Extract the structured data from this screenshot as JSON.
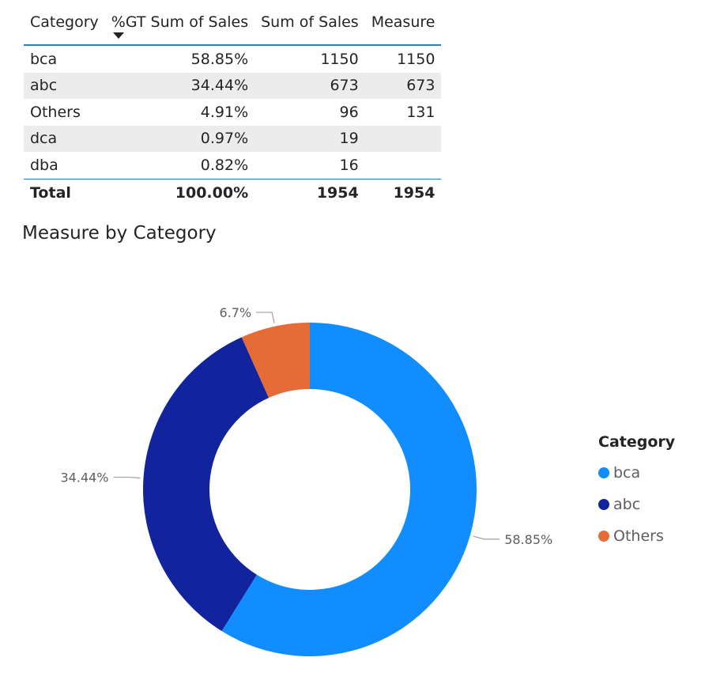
{
  "table": {
    "headers": [
      "Category",
      "%GT Sum of Sales",
      "Sum of Sales",
      "Measure"
    ],
    "sort_column": 1,
    "rows": [
      {
        "category": "bca",
        "pct": "58.85%",
        "sales": "1150",
        "measure": "1150"
      },
      {
        "category": "abc",
        "pct": "34.44%",
        "sales": "673",
        "measure": "673"
      },
      {
        "category": "Others",
        "pct": "4.91%",
        "sales": "96",
        "measure": "131"
      },
      {
        "category": "dca",
        "pct": "0.97%",
        "sales": "19",
        "measure": ""
      },
      {
        "category": "dba",
        "pct": "0.82%",
        "sales": "16",
        "measure": ""
      }
    ],
    "total": {
      "label": "Total",
      "pct": "100.00%",
      "sales": "1954",
      "measure": "1954"
    }
  },
  "chart_data": {
    "type": "pie",
    "variant": "donut",
    "title": "Measure by Category",
    "categories": [
      "bca",
      "abc",
      "Others"
    ],
    "values": [
      1150,
      673,
      131
    ],
    "data_labels": [
      "58.85%",
      "34.44%",
      "6.7%"
    ],
    "colors": [
      "#118dff",
      "#12239e",
      "#e66c37"
    ],
    "legend_title": "Category",
    "legend_position": "right"
  }
}
